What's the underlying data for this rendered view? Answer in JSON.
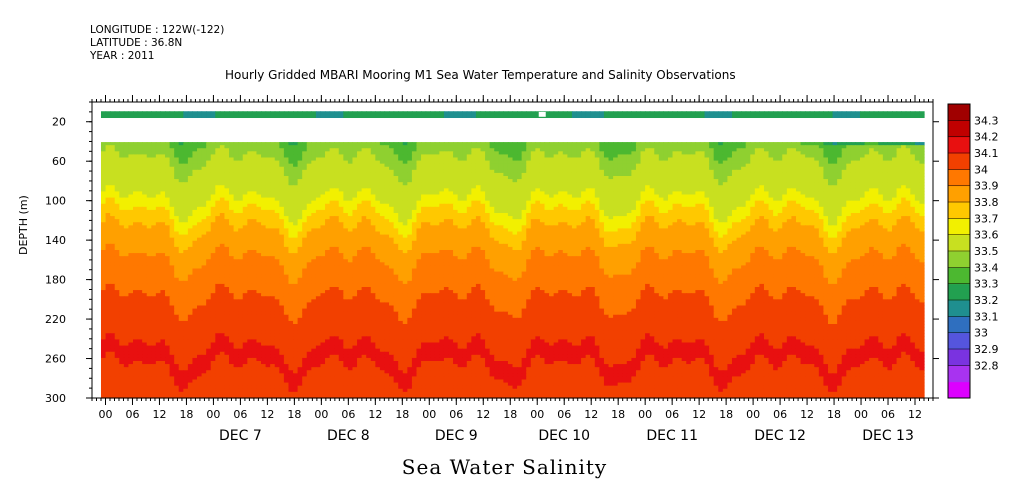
{
  "header": {
    "longitude": "LONGITUDE : 122W(-122)",
    "latitude": "LATITUDE : 36.8N",
    "year": "YEAR : 2011"
  },
  "chart_data": {
    "type": "heatmap",
    "title": "Hourly Gridded MBARI Mooring M1 Sea Water Temperature and Salinity Observations",
    "xlabel": "Sea Water Salinity",
    "ylabel": "DEPTH (m)",
    "x_range": [
      "2011-12-06T03:00",
      "2011-12-13T22:00"
    ],
    "y_range": [
      0,
      300
    ],
    "y_inverted": true,
    "y_ticks": [
      20,
      60,
      100,
      140,
      180,
      220,
      260,
      300
    ],
    "x_hour_ticks": [
      "00",
      "06",
      "12",
      "18",
      "00",
      "06",
      "12",
      "18",
      "00",
      "06",
      "12",
      "18",
      "00",
      "06",
      "12",
      "18",
      "00",
      "06",
      "12",
      "18",
      "00",
      "06",
      "12",
      "18",
      "00",
      "06",
      "12",
      "18",
      "00",
      "06",
      "12",
      "18"
    ],
    "x_day_labels": [
      "DEC  7",
      "DEC  8",
      "DEC  9",
      "DEC 10",
      "DEC 11",
      "DEC 12",
      "DEC 13"
    ],
    "data_start": "2011-12-06T05:00",
    "data_end": "2011-12-13T20:00",
    "colorbar": {
      "levels": [
        32.8,
        32.9,
        33,
        33.1,
        33.2,
        33.3,
        33.4,
        33.5,
        33.6,
        33.7,
        33.8,
        33.9,
        34,
        34.1,
        34.2,
        34.3
      ],
      "labels": [
        "34.3",
        "34.2",
        "34.1",
        "34",
        "33.9",
        "33.8",
        "33.7",
        "33.6",
        "33.5",
        "33.4",
        "33.3",
        "33.2",
        "33.1",
        "33",
        "32.9",
        "32.8"
      ],
      "colors": [
        "#dd00ff",
        "#a833f0",
        "#7a33e0",
        "#5555dd",
        "#2f6fbf",
        "#1f8f8f",
        "#22a050",
        "#4cb830",
        "#8fd030",
        "#c8e020",
        "#f2f000",
        "#ffc800",
        "#ffa000",
        "#ff7800",
        "#f24000",
        "#e81010",
        "#c00000",
        "#a00000"
      ]
    },
    "profile": [
      {
        "depth": 10,
        "salinity": 33.35
      },
      {
        "depth": 40,
        "salinity": 33.5
      },
      {
        "depth": 60,
        "salinity": 33.6
      },
      {
        "depth": 80,
        "salinity": 33.65
      },
      {
        "depth": 100,
        "salinity": 33.7
      },
      {
        "depth": 120,
        "salinity": 33.85
      },
      {
        "depth": 140,
        "salinity": 33.95
      },
      {
        "depth": 160,
        "salinity": 34.0
      },
      {
        "depth": 180,
        "salinity": 34.05
      },
      {
        "depth": 200,
        "salinity": 34.1
      },
      {
        "depth": 220,
        "salinity": 34.15
      },
      {
        "depth": 240,
        "salinity": 34.18
      },
      {
        "depth": 260,
        "salinity": 34.22
      },
      {
        "depth": 280,
        "salinity": 34.18
      },
      {
        "depth": 300,
        "salinity": 34.15
      }
    ],
    "missing": [
      {
        "depth_from": 15,
        "depth_to": 40,
        "time": "all"
      },
      {
        "depth_from": 10,
        "depth_to": 15,
        "time": "2011-12-10T07:00"
      }
    ]
  }
}
